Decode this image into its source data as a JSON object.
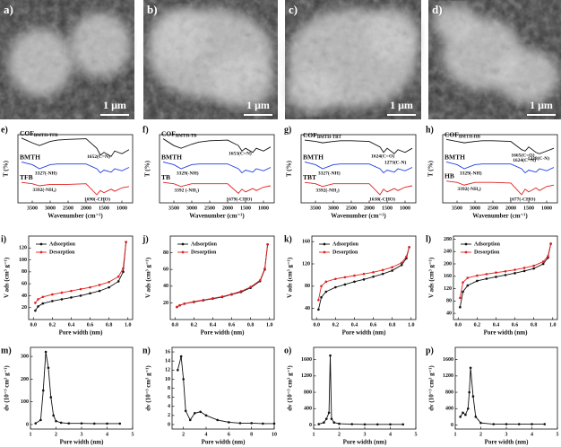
{
  "images": [
    {
      "label": "a)",
      "scale": "1 μm"
    },
    {
      "label": "b)",
      "scale": "1 μm"
    },
    {
      "label": "c)",
      "scale": "1 μm"
    },
    {
      "label": "d)",
      "scale": "1 μm"
    }
  ],
  "chart_data": [
    {
      "type": "line",
      "panel": "e)",
      "xlabel": "Wavenumber (cm⁻¹)",
      "ylabel": "T (%)",
      "x": [
        3800,
        3500,
        3300,
        3000,
        2800,
        2500,
        2000,
        1700,
        1600,
        1500,
        1300,
        1200,
        1000,
        800
      ],
      "xlim": [
        3900,
        700
      ],
      "xticks": [
        3500,
        3000,
        2500,
        2000,
        1500,
        1000
      ],
      "ylim": [
        0,
        100
      ],
      "series": [
        {
          "name": "COF",
          "name_sub": "BMTH-TFB",
          "color": "#111111",
          "values": [
            95,
            88,
            84,
            90,
            92,
            93,
            94,
            80,
            70,
            74,
            68,
            76,
            72,
            78
          ],
          "annotations": [
            {
              "x": 1652,
              "label": "1652(C=N)"
            }
          ]
        },
        {
          "name": "BMTH",
          "color": "#1f3de0",
          "values": [
            60,
            56,
            50,
            56,
            57,
            57,
            57,
            50,
            44,
            48,
            45,
            50,
            47,
            52
          ],
          "annotations": [
            {
              "x": 3327,
              "label": "3327(-NH)"
            }
          ]
        },
        {
          "name": "TFB",
          "color": "#e0201f",
          "values": [
            30,
            28,
            25,
            27,
            27,
            27,
            28,
            12,
            18,
            15,
            20,
            17,
            22,
            24
          ],
          "annotations": [
            {
              "x": 3392,
              "label": "3392(-NH₂)"
            },
            {
              "x": 1690,
              "label": "1690(-CHO)"
            }
          ]
        }
      ]
    },
    {
      "type": "line",
      "panel": "f)",
      "xlabel": "Wavenumber (cm⁻¹)",
      "ylabel": "T (%)",
      "x": [
        3800,
        3500,
        3300,
        3000,
        2800,
        2500,
        2000,
        1700,
        1600,
        1500,
        1300,
        1200,
        1000,
        800
      ],
      "xlim": [
        3900,
        700
      ],
      "xticks": [
        3500,
        3000,
        2500,
        2000,
        1500,
        1000
      ],
      "ylim": [
        0,
        100
      ],
      "series": [
        {
          "name": "COF",
          "name_sub": "BMTH-TB",
          "color": "#111111",
          "values": [
            94,
            84,
            80,
            86,
            89,
            91,
            92,
            84,
            76,
            80,
            74,
            80,
            76,
            82
          ],
          "annotations": [
            {
              "x": 1653,
              "label": "1653(C=N)"
            }
          ]
        },
        {
          "name": "BMTH",
          "color": "#1f3de0",
          "values": [
            60,
            56,
            50,
            56,
            57,
            57,
            57,
            50,
            44,
            48,
            45,
            50,
            47,
            52
          ],
          "annotations": [
            {
              "x": 3329,
              "label": "3329(-NH)"
            }
          ]
        },
        {
          "name": "TB",
          "color": "#e0201f",
          "values": [
            30,
            28,
            24,
            28,
            28,
            28,
            28,
            14,
            20,
            16,
            21,
            18,
            23,
            25
          ],
          "annotations": [
            {
              "x": 3392,
              "label": "3392 (-NH₂)"
            },
            {
              "x": 1679,
              "label": "1679(-CHO)"
            }
          ]
        }
      ]
    },
    {
      "type": "line",
      "panel": "g)",
      "xlabel": "Wavenumber (cm⁻¹)",
      "ylabel": "T (%)",
      "x": [
        3800,
        3500,
        3300,
        3000,
        2800,
        2500,
        2000,
        1700,
        1600,
        1500,
        1300,
        1200,
        1000,
        800
      ],
      "xlim": [
        3900,
        700
      ],
      "xticks": [
        3500,
        3000,
        2500,
        2000,
        1500,
        1000
      ],
      "ylim": [
        0,
        100
      ],
      "series": [
        {
          "name": "COF",
          "name_sub": "BMTH-TBT",
          "color": "#111111",
          "values": [
            92,
            90,
            88,
            90,
            91,
            91,
            90,
            82,
            74,
            80,
            72,
            78,
            74,
            80
          ],
          "annotations": [
            {
              "x": 1624,
              "label": "1624(C=O)"
            },
            {
              "x": 1273,
              "label": "1273(C-N)"
            }
          ]
        },
        {
          "name": "BMTH",
          "color": "#1f3de0",
          "values": [
            60,
            56,
            50,
            56,
            57,
            57,
            57,
            50,
            44,
            48,
            45,
            50,
            47,
            52
          ],
          "annotations": [
            {
              "x": 3327,
              "label": "3327(-NH)"
            }
          ]
        },
        {
          "name": "TBT",
          "color": "#e0201f",
          "values": [
            30,
            28,
            24,
            28,
            28,
            28,
            28,
            12,
            20,
            16,
            21,
            18,
            23,
            25
          ],
          "annotations": [
            {
              "x": 3392,
              "label": "3392(-NH₂)"
            },
            {
              "x": 1638,
              "label": "1638(-CHO)"
            }
          ]
        }
      ]
    },
    {
      "type": "line",
      "panel": "h)",
      "xlabel": "Wavenumber (cm⁻¹)",
      "ylabel": "T (%)",
      "x": [
        3800,
        3500,
        3300,
        3000,
        2800,
        2500,
        2000,
        1700,
        1600,
        1500,
        1300,
        1200,
        1000,
        800
      ],
      "xlim": [
        3900,
        700
      ],
      "xticks": [
        3500,
        3000,
        2500,
        2000,
        1500,
        1000
      ],
      "ylim": [
        0,
        100
      ],
      "series": [
        {
          "name": "COF",
          "name_sub": "BMTH-HB",
          "color": "#111111",
          "values": [
            93,
            90,
            88,
            90,
            91,
            91,
            90,
            78,
            76,
            82,
            74,
            72,
            76,
            80
          ],
          "annotations": [
            {
              "x": 1665,
              "label": "1665(C=O)"
            },
            {
              "x": 1624,
              "label": "1624(C=N)"
            },
            {
              "x": 1228,
              "label": "1228(C-N)"
            }
          ]
        },
        {
          "name": "BMTH",
          "color": "#1f3de0",
          "values": [
            60,
            56,
            50,
            56,
            57,
            57,
            57,
            50,
            44,
            48,
            45,
            50,
            47,
            52
          ],
          "annotations": [
            {
              "x": 3329,
              "label": "3329(-NH)"
            }
          ]
        },
        {
          "name": "HB",
          "color": "#e0201f",
          "values": [
            32,
            30,
            26,
            30,
            30,
            30,
            29,
            12,
            20,
            16,
            22,
            18,
            24,
            26
          ],
          "annotations": [
            {
              "x": 3392,
              "label": "3392(-NH₂)"
            },
            {
              "x": 1677,
              "label": "1677(-CHO)"
            }
          ]
        }
      ]
    },
    {
      "type": "line",
      "panel": "i)",
      "xlabel": "Pore width (nm)",
      "ylabel": "V ads (cm³ g⁻¹)",
      "markers": true,
      "legend": "upper left",
      "x": [
        0.02,
        0.05,
        0.1,
        0.2,
        0.3,
        0.4,
        0.5,
        0.6,
        0.7,
        0.8,
        0.9,
        0.95,
        0.98
      ],
      "xlim": [
        -0.05,
        1.05
      ],
      "xticks": [
        {
          "value": 0,
          "label": "0.0"
        },
        0.2,
        0.4,
        0.6,
        0.8,
        {
          "value": 1,
          "label": "1.0"
        }
      ],
      "ylim": [
        0,
        140
      ],
      "yticks": [
        20,
        40,
        60,
        80,
        100,
        120
      ],
      "series": [
        {
          "name": "Adsorption",
          "color": "#111111",
          "values": [
            15,
            22,
            27,
            31,
            34,
            37,
            40,
            44,
            48,
            54,
            64,
            80,
            130
          ]
        },
        {
          "name": "Desorption",
          "color": "#e0201f",
          "values": [
            28,
            34,
            38,
            42,
            45,
            48,
            51,
            54,
            58,
            63,
            72,
            86,
            130
          ]
        }
      ]
    },
    {
      "type": "line",
      "panel": "j)",
      "xlabel": "Pore width (nm)",
      "ylabel": "V ads (cm³ g⁻¹)",
      "markers": true,
      "legend": "upper left",
      "x": [
        0.02,
        0.05,
        0.1,
        0.2,
        0.3,
        0.4,
        0.5,
        0.6,
        0.7,
        0.8,
        0.9,
        0.95,
        0.98
      ],
      "xlim": [
        -0.05,
        1.05
      ],
      "xticks": [
        {
          "value": 0,
          "label": "0.0"
        },
        0.2,
        0.4,
        0.6,
        0.8,
        {
          "value": 1,
          "label": "1.0"
        }
      ],
      "ylim": [
        0,
        100
      ],
      "yticks": [
        20,
        40,
        60,
        80
      ],
      "series": [
        {
          "name": "Adsorption",
          "color": "#111111",
          "values": [
            15,
            17,
            19,
            21,
            23,
            25,
            27,
            30,
            33,
            38,
            46,
            60,
            90
          ]
        },
        {
          "name": "Desorption",
          "color": "#e0201f",
          "values": [
            15,
            17,
            19,
            21.5,
            23.5,
            25.5,
            27.5,
            30.5,
            34,
            39,
            47,
            61,
            90
          ]
        }
      ]
    },
    {
      "type": "line",
      "panel": "k)",
      "xlabel": "Pore width (nm)",
      "ylabel": "V ads (cm³ g⁻¹)",
      "markers": true,
      "legend": "upper left",
      "x": [
        0.02,
        0.05,
        0.1,
        0.2,
        0.3,
        0.4,
        0.5,
        0.6,
        0.7,
        0.8,
        0.9,
        0.95,
        0.98
      ],
      "xlim": [
        -0.05,
        1.05
      ],
      "xticks": [
        {
          "value": 0,
          "label": "0.0"
        },
        0.2,
        0.4,
        0.6,
        0.8,
        {
          "value": 1,
          "label": "1.0"
        }
      ],
      "ylim": [
        20,
        170
      ],
      "yticks": [
        40,
        80,
        120,
        160
      ],
      "series": [
        {
          "name": "Adsorption",
          "color": "#111111",
          "values": [
            38,
            60,
            70,
            78,
            83,
            88,
            92,
            97,
            102,
            108,
            118,
            130,
            150
          ]
        },
        {
          "name": "Desorption",
          "color": "#e0201f",
          "values": [
            55,
            80,
            88,
            93,
            96,
            99,
            102,
            105,
            109,
            114,
            122,
            133,
            150
          ]
        }
      ]
    },
    {
      "type": "line",
      "panel": "l)",
      "xlabel": "Pore width (nm)",
      "ylabel": "V ads (cm³ g⁻¹)",
      "markers": true,
      "legend": "upper left",
      "x": [
        0.02,
        0.05,
        0.1,
        0.2,
        0.3,
        0.4,
        0.5,
        0.6,
        0.7,
        0.8,
        0.9,
        0.95,
        0.98
      ],
      "xlim": [
        -0.05,
        1.05
      ],
      "xticks": [
        {
          "value": 0,
          "label": "0.0"
        },
        0.2,
        0.4,
        0.6,
        0.8,
        {
          "value": 1,
          "label": "1.0"
        }
      ],
      "ylim": [
        20,
        290
      ],
      "yticks": [
        40,
        80,
        120,
        160,
        200,
        240,
        280
      ],
      "series": [
        {
          "name": "Adsorption",
          "color": "#111111",
          "values": [
            60,
            110,
            130,
            145,
            152,
            158,
            164,
            170,
            177,
            185,
            200,
            220,
            265
          ]
        },
        {
          "name": "Desorption",
          "color": "#e0201f",
          "values": [
            90,
            140,
            155,
            162,
            167,
            172,
            176,
            181,
            187,
            194,
            207,
            225,
            265
          ]
        }
      ]
    },
    {
      "type": "line",
      "panel": "m)",
      "xlabel": "Pore width (nm)",
      "ylabel": "dv (10⁻³ cm³ g⁻¹)",
      "markers": true,
      "x": [
        1.2,
        1.4,
        1.5,
        1.6,
        1.7,
        1.8,
        1.9,
        2.0,
        2.2,
        2.5,
        3,
        3.5,
        4,
        4.5
      ],
      "xlim": [
        1,
        5
      ],
      "xticks": [
        1,
        2,
        3,
        4,
        5
      ],
      "ylim": [
        -20,
        340
      ],
      "yticks": [
        0,
        100,
        200,
        300
      ],
      "series": [
        {
          "color": "#111111",
          "values": [
            5,
            20,
            150,
            320,
            250,
            120,
            40,
            15,
            8,
            5,
            5,
            4,
            4,
            4
          ]
        }
      ]
    },
    {
      "type": "line",
      "panel": "n)",
      "xlabel": "Pore width (nm)",
      "ylabel": "dv (10⁻³ cm³ g⁻¹)",
      "markers": true,
      "x": [
        1.5,
        1.8,
        2,
        2.2,
        2.6,
        3,
        3.5,
        4,
        5,
        6,
        7,
        8,
        9,
        10
      ],
      "xlim": [
        1,
        10
      ],
      "xticks": [
        2,
        4,
        6,
        8,
        10
      ],
      "ylim": [
        -1,
        17
      ],
      "yticks": [
        0,
        2,
        4,
        6,
        8,
        10,
        12,
        14,
        16
      ],
      "series": [
        {
          "color": "#111111",
          "values": [
            12,
            15,
            10,
            3,
            1,
            2.5,
            2.8,
            2,
            1,
            0.5,
            0.3,
            0.3,
            0.2,
            0.2
          ]
        }
      ]
    },
    {
      "type": "line",
      "panel": "o)",
      "xlabel": "Pore width (nm)",
      "ylabel": "dv (10⁻³ cm³ g⁻¹)",
      "markers": true,
      "x": [
        1.2,
        1.4,
        1.5,
        1.6,
        1.65,
        1.7,
        1.8,
        2,
        2.5,
        3,
        3.5,
        4,
        4.5
      ],
      "xlim": [
        1,
        5
      ],
      "xticks": [
        1,
        2,
        3,
        4,
        5
      ],
      "ylim": [
        -100,
        1900
      ],
      "yticks": [
        0,
        400,
        800,
        1200,
        1600
      ],
      "series": [
        {
          "color": "#111111",
          "values": [
            20,
            60,
            150,
            300,
            1700,
            150,
            60,
            30,
            20,
            15,
            15,
            15,
            15
          ]
        }
      ]
    },
    {
      "type": "line",
      "panel": "p)",
      "xlabel": "Pore width (nm)",
      "ylabel": "dv (10⁻³ cm³ g⁻¹)",
      "markers": true,
      "x": [
        1.2,
        1.3,
        1.4,
        1.5,
        1.55,
        1.6,
        1.7,
        1.8,
        2,
        2.5,
        3,
        3.5,
        4,
        4.5
      ],
      "xlim": [
        1,
        5
      ],
      "xticks": [
        1,
        2,
        3,
        4,
        5
      ],
      "ylim": [
        -100,
        1900
      ],
      "yticks": [
        0,
        400,
        800,
        1200,
        1600
      ],
      "series": [
        {
          "color": "#111111",
          "values": [
            200,
            300,
            250,
            400,
            800,
            1400,
            700,
            200,
            50,
            20,
            20,
            20,
            20,
            20
          ]
        }
      ]
    }
  ]
}
